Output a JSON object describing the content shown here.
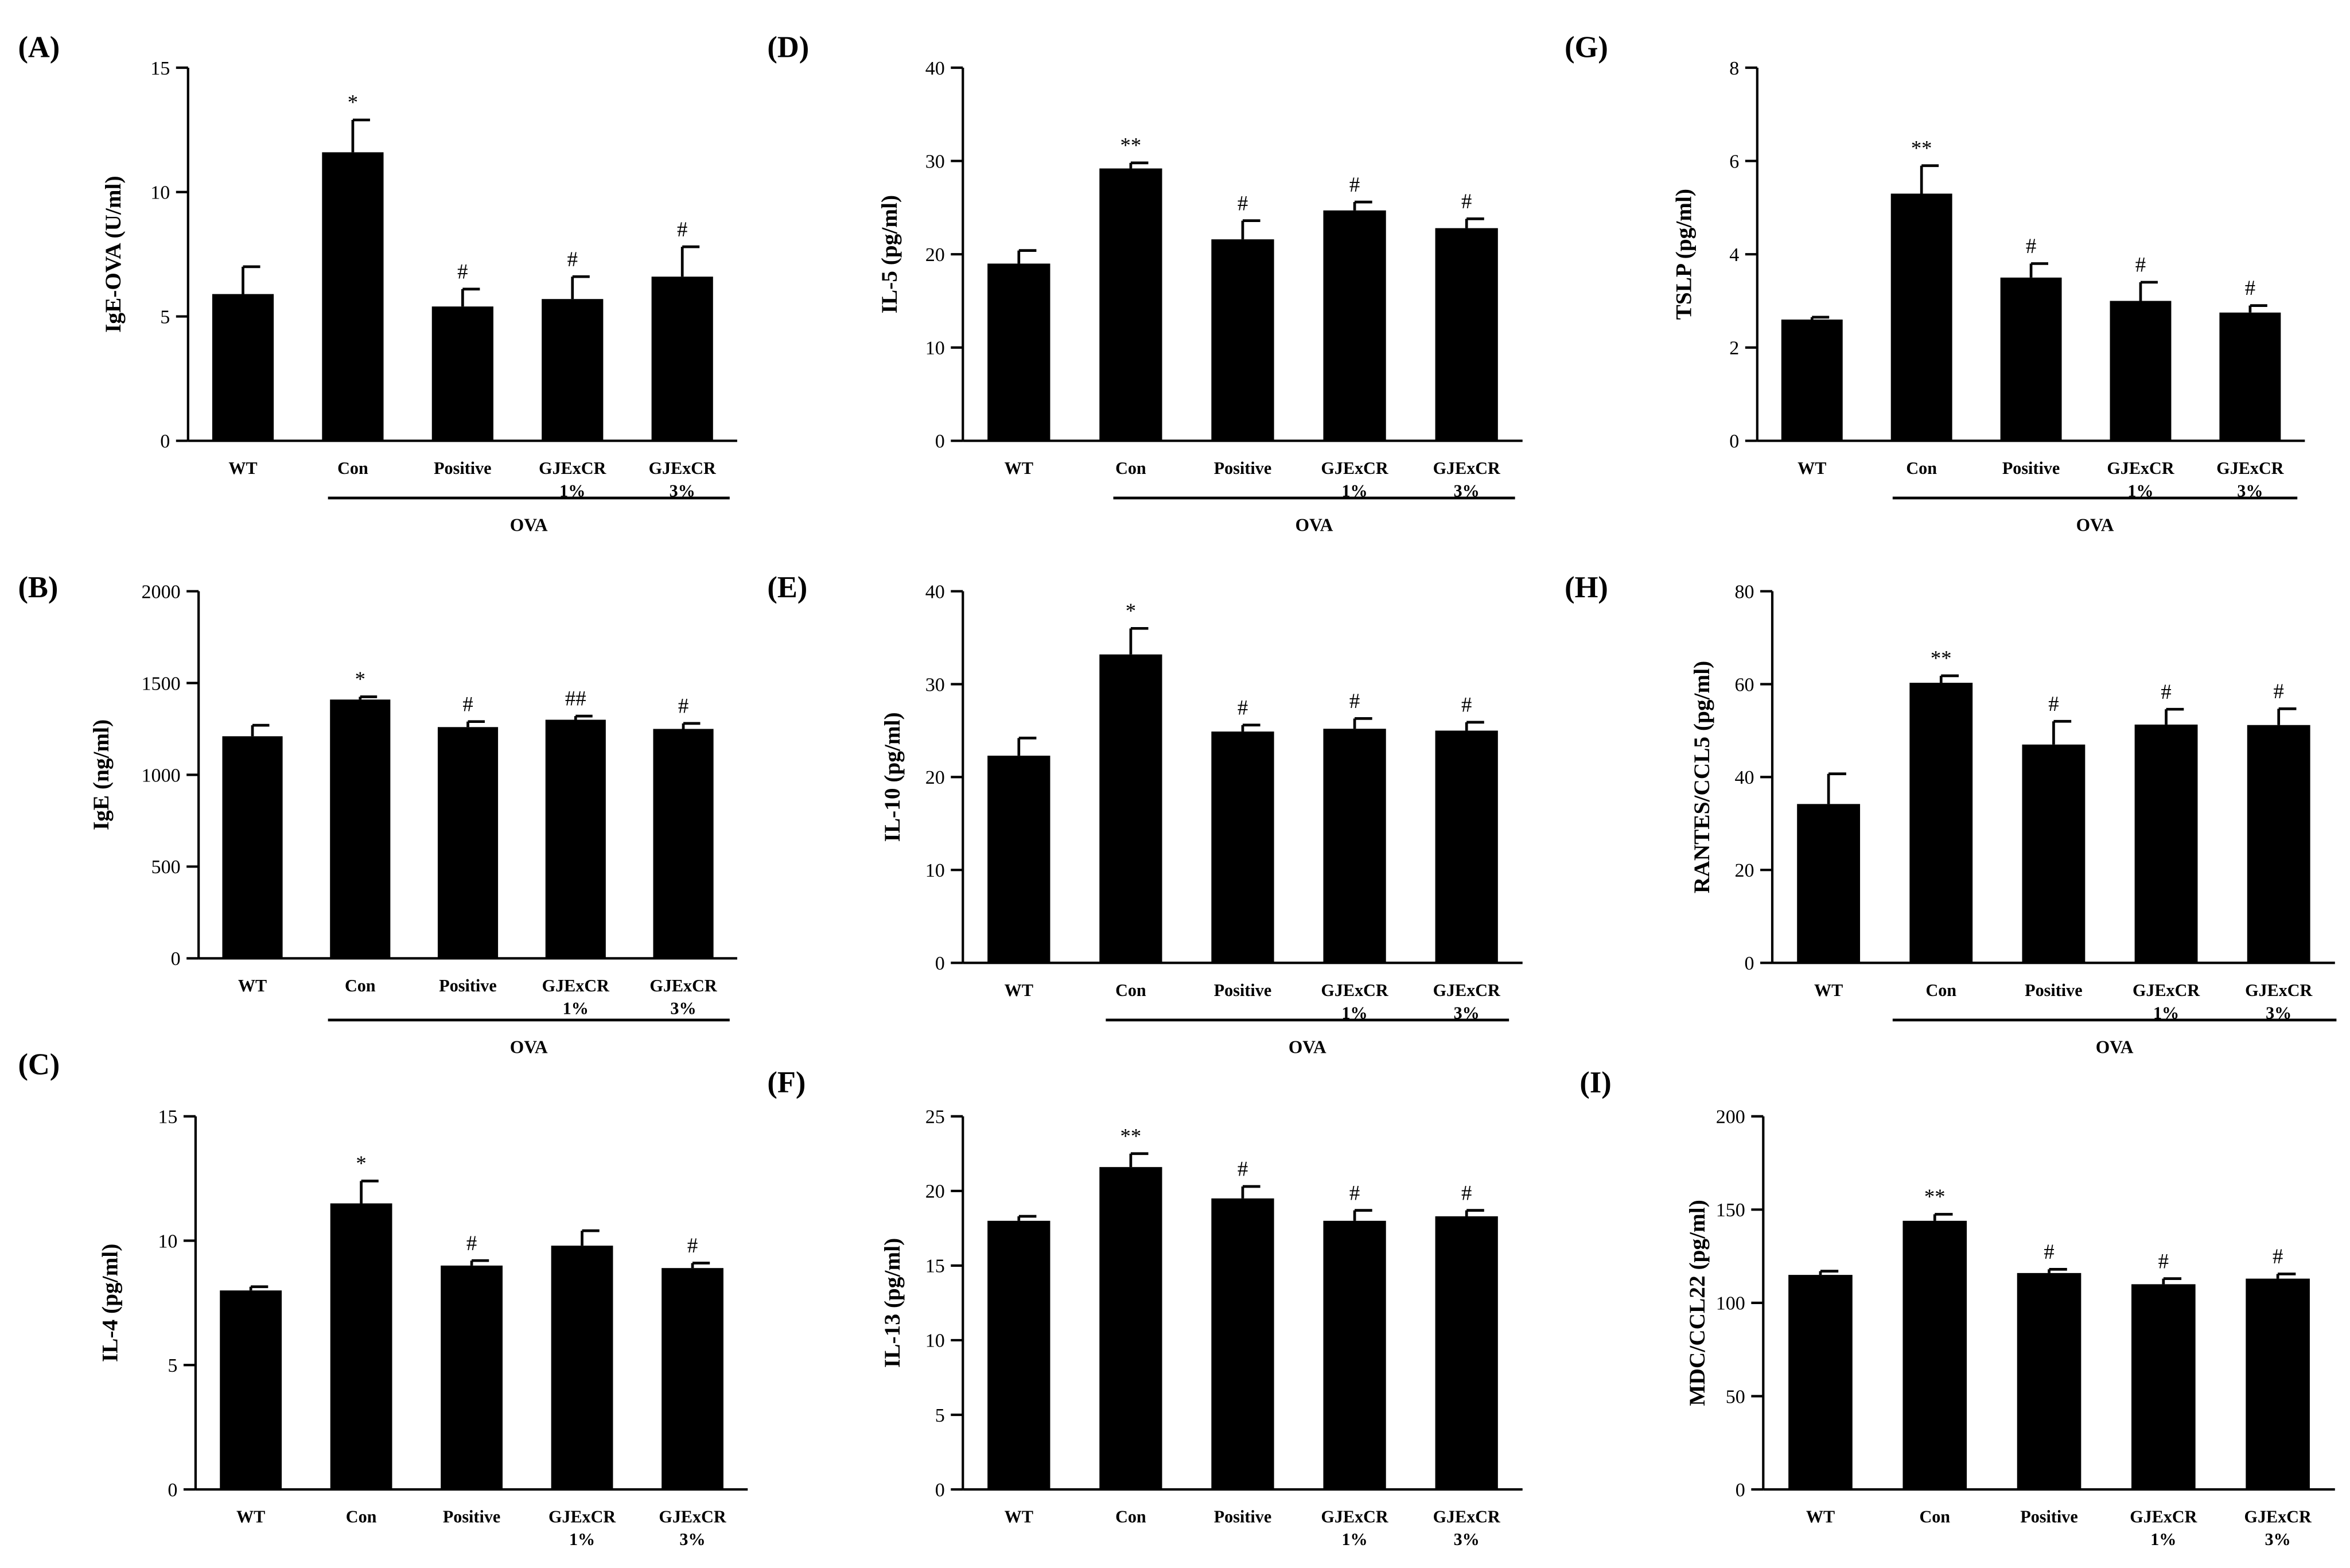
{
  "figure": {
    "categories": [
      "WT",
      "Con",
      "Positive",
      "GJExCR\n1%",
      "GJExCR\n3%"
    ],
    "group_label": "OVA",
    "bar_color": "#000000"
  },
  "chart_data": [
    {
      "type": "bar",
      "panel_label": "(A)",
      "ylabel": "IgE-OVA (U/ml)",
      "ylim": [
        0,
        15
      ],
      "yticks": [
        0,
        5,
        10,
        15
      ],
      "categories": [
        "WT",
        "Con",
        "Positive",
        "GJExCR 1%",
        "GJExCR 3%"
      ],
      "values": [
        5.9,
        11.6,
        5.4,
        5.7,
        6.6
      ],
      "errors": [
        1.1,
        1.3,
        0.7,
        0.9,
        1.2
      ],
      "annotations": [
        "",
        "*",
        "#",
        "#",
        "#"
      ],
      "group_label": "OVA"
    },
    {
      "type": "bar",
      "panel_label": "(B)",
      "ylabel": "IgE (ng/ml)",
      "ylim": [
        0,
        2000
      ],
      "yticks": [
        0,
        500,
        1000,
        1500,
        2000
      ],
      "categories": [
        "WT",
        "Con",
        "Positive",
        "GJExCR 1%",
        "GJExCR 3%"
      ],
      "values": [
        1210,
        1410,
        1260,
        1300,
        1250
      ],
      "errors": [
        60,
        15,
        30,
        20,
        30
      ],
      "annotations": [
        "",
        "*",
        "#",
        "##",
        "#"
      ],
      "group_label": "OVA"
    },
    {
      "type": "bar",
      "panel_label": "(C)",
      "ylabel": "IL-4 (pg/ml)",
      "ylim": [
        0,
        15
      ],
      "yticks": [
        0,
        5,
        10,
        15
      ],
      "categories": [
        "WT",
        "Con",
        "Positive",
        "GJExCR 1%",
        "GJExCR 3%"
      ],
      "values": [
        8.0,
        11.5,
        9.0,
        9.8,
        8.9
      ],
      "errors": [
        0.15,
        0.9,
        0.2,
        0.6,
        0.2
      ],
      "annotations": [
        "",
        "*",
        "#",
        "",
        "#"
      ],
      "group_label": ""
    },
    {
      "type": "bar",
      "panel_label": "(D)",
      "ylabel": "IL-5 (pg/ml)",
      "ylim": [
        0,
        40
      ],
      "yticks": [
        0,
        10,
        20,
        30,
        40
      ],
      "categories": [
        "WT",
        "Con",
        "Positive",
        "GJExCR 1%",
        "GJExCR 3%"
      ],
      "values": [
        19.0,
        29.2,
        21.6,
        24.7,
        22.8
      ],
      "errors": [
        1.4,
        0.6,
        2.0,
        0.9,
        1.0
      ],
      "annotations": [
        "",
        "**",
        "#",
        "#",
        "#"
      ],
      "group_label": "OVA"
    },
    {
      "type": "bar",
      "panel_label": "(E)",
      "ylabel": "IL-10 (pg/ml)",
      "ylim": [
        0,
        40
      ],
      "yticks": [
        0,
        10,
        20,
        30,
        40
      ],
      "categories": [
        "WT",
        "Con",
        "Positive",
        "GJExCR 1%",
        "GJExCR 3%"
      ],
      "values": [
        22.3,
        33.2,
        24.9,
        25.2,
        25.0
      ],
      "errors": [
        1.9,
        2.8,
        0.7,
        1.1,
        0.9
      ],
      "annotations": [
        "",
        "*",
        "#",
        "#",
        "#"
      ],
      "group_label": "OVA"
    },
    {
      "type": "bar",
      "panel_label": "(F)",
      "ylabel": "IL-13 (pg/ml)",
      "ylim": [
        0,
        25
      ],
      "yticks": [
        0,
        5,
        10,
        15,
        20,
        25
      ],
      "categories": [
        "WT",
        "Con",
        "Positive",
        "GJExCR 1%",
        "GJExCR 3%"
      ],
      "values": [
        18.0,
        21.6,
        19.5,
        18.0,
        18.3
      ],
      "errors": [
        0.3,
        0.9,
        0.8,
        0.7,
        0.4
      ],
      "annotations": [
        "",
        "**",
        "#",
        "#",
        "#"
      ],
      "group_label": ""
    },
    {
      "type": "bar",
      "panel_label": "(G)",
      "ylabel": "TSLP (pg/ml)",
      "ylim": [
        0,
        8
      ],
      "yticks": [
        0,
        2,
        4,
        6,
        8
      ],
      "categories": [
        "WT",
        "Con",
        "Positive",
        "GJExCR 1%",
        "GJExCR 3%"
      ],
      "values": [
        2.6,
        5.3,
        3.5,
        3.0,
        2.75
      ],
      "errors": [
        0.05,
        0.6,
        0.3,
        0.4,
        0.15
      ],
      "annotations": [
        "",
        "**",
        "#",
        "#",
        "#"
      ],
      "group_label": "OVA"
    },
    {
      "type": "bar",
      "panel_label": "(H)",
      "ylabel": "RANTES/CCL5 (pg/ml)",
      "ylim": [
        0,
        80
      ],
      "yticks": [
        0,
        20,
        40,
        60,
        80
      ],
      "categories": [
        "WT",
        "Con",
        "Positive",
        "GJExCR 1%",
        "GJExCR 3%"
      ],
      "values": [
        34.2,
        60.3,
        47.0,
        51.3,
        51.2
      ],
      "errors": [
        6.5,
        1.5,
        5.0,
        3.3,
        3.5
      ],
      "annotations": [
        "",
        "**",
        "#",
        "#",
        "#"
      ],
      "group_label": "OVA"
    },
    {
      "type": "bar",
      "panel_label": "(I)",
      "ylabel": "MDC/CCL22 (pg/ml)",
      "ylim": [
        0,
        200
      ],
      "yticks": [
        0,
        50,
        100,
        150,
        200
      ],
      "categories": [
        "WT",
        "Con",
        "Positive",
        "GJExCR 1%",
        "GJExCR 3%"
      ],
      "values": [
        115,
        144,
        116,
        110,
        113
      ],
      "errors": [
        2,
        3.5,
        2,
        3,
        2.5
      ],
      "annotations": [
        "",
        "**",
        "#",
        "#",
        "#"
      ],
      "group_label": ""
    }
  ]
}
